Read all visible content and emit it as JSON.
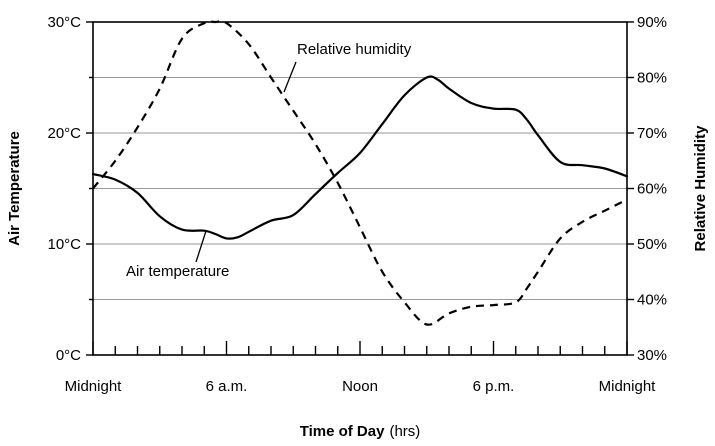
{
  "chart_data": {
    "type": "line",
    "xlabel": {
      "bold": "Time of Day",
      "unit": "(hrs)"
    },
    "ylabel_left": "Air Temperature",
    "ylabel_right": "Relative Humidity",
    "x_range": [
      0,
      24
    ],
    "x_minor_tick_interval_hours": 1,
    "x_tick_labels": [
      {
        "x": 0,
        "label": "Midnight"
      },
      {
        "x": 6,
        "label": "6 a.m."
      },
      {
        "x": 12,
        "label": "Noon"
      },
      {
        "x": 18,
        "label": "6 p.m."
      },
      {
        "x": 24,
        "label": "Midnight"
      }
    ],
    "y_left_range": [
      0,
      30
    ],
    "y_left_ticks": [
      {
        "v": 0,
        "label": "0°C"
      },
      {
        "v": 10,
        "label": "10°C"
      },
      {
        "v": 20,
        "label": "20°C"
      },
      {
        "v": 30,
        "label": "30°C"
      }
    ],
    "y_left_minor_ticks": [
      5,
      15,
      25
    ],
    "y_right_range": [
      30,
      90
    ],
    "y_right_ticks": [
      {
        "v": 30,
        "label": "30%"
      },
      {
        "v": 40,
        "label": "40%"
      },
      {
        "v": 50,
        "label": "50%"
      },
      {
        "v": 60,
        "label": "60%"
      },
      {
        "v": 70,
        "label": "70%"
      },
      {
        "v": 80,
        "label": "80%"
      },
      {
        "v": 90,
        "label": "90%"
      }
    ],
    "gridlines": "horizontal",
    "series": [
      {
        "name": "Air temperature",
        "axis": "left",
        "style": "solid",
        "color": "#000000",
        "x": [
          0,
          1,
          2,
          3,
          4,
          5,
          5.5,
          6,
          6.5,
          7,
          8,
          9,
          10,
          11,
          12,
          13,
          14,
          15,
          15.5,
          16,
          17,
          18,
          19,
          19.5,
          20,
          21,
          22,
          23,
          24
        ],
        "y": [
          16.3,
          15.8,
          14.6,
          12.5,
          11.3,
          11.2,
          10.9,
          10.5,
          10.6,
          11.1,
          12.1,
          12.6,
          14.5,
          16.4,
          18.2,
          20.8,
          23.4,
          25.0,
          24.8,
          24.0,
          22.7,
          22.2,
          22.1,
          21.2,
          19.8,
          17.4,
          17.1,
          16.8,
          16.1
        ]
      },
      {
        "name": "Relative humidity",
        "axis": "right",
        "style": "dashed",
        "color": "#000000",
        "x": [
          0,
          1,
          2,
          3,
          4,
          5,
          5.5,
          6,
          7,
          8,
          9,
          10,
          11,
          12,
          13,
          14,
          15,
          16,
          17,
          18,
          19,
          19.5,
          20,
          21,
          22,
          23,
          24
        ],
        "y": [
          60,
          65,
          71,
          78,
          87,
          89.8,
          90,
          89.8,
          86,
          80,
          74,
          68,
          61,
          53,
          45,
          39.5,
          35.5,
          37.5,
          38.7,
          39,
          39.5,
          42,
          45,
          51,
          54,
          56,
          58
        ]
      }
    ],
    "annotations": [
      {
        "text": "Relative humidity",
        "series": 1
      },
      {
        "text": "Air temperature",
        "series": 0
      }
    ]
  }
}
